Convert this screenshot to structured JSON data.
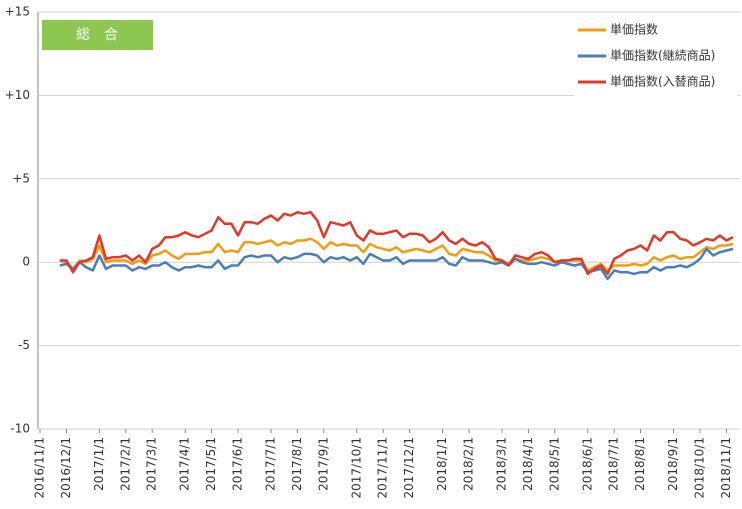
{
  "chart_data": {
    "type": "line",
    "annotation": "総　合",
    "categories": [
      "2016/11/1",
      null,
      null,
      null,
      "2016/12/1",
      null,
      null,
      null,
      null,
      "2017/1/1",
      null,
      null,
      null,
      "2017/2/1",
      null,
      null,
      null,
      "2017/3/1",
      null,
      null,
      null,
      null,
      "2017/4/1",
      null,
      null,
      null,
      "2017/5/1",
      null,
      null,
      null,
      "2017/6/1",
      null,
      null,
      null,
      null,
      "2017/7/1",
      null,
      null,
      null,
      "2017/8/1",
      null,
      null,
      null,
      "2017/9/1",
      null,
      null,
      null,
      null,
      "2017/10/1",
      null,
      null,
      null,
      "2017/11/1",
      null,
      null,
      null,
      "2017/12/1",
      null,
      null,
      null,
      null,
      "2018/1/1",
      null,
      null,
      null,
      "2018/2/1",
      null,
      null,
      null,
      null,
      "2018/3/1",
      null,
      null,
      null,
      "2018/4/1",
      null,
      null,
      null,
      "2018/5/1",
      null,
      null,
      null,
      null,
      "2018/6/1",
      null,
      null,
      null,
      "2018/7/1",
      null,
      null,
      null,
      "2018/8/1",
      null,
      null,
      null,
      null,
      "2018/9/1",
      null,
      null,
      null,
      "2018/10/1",
      null,
      null,
      null,
      "2018/11/1",
      null
    ],
    "series": [
      {
        "name": "単価指数",
        "color": "#f39c12",
        "values": [
          null,
          null,
          null,
          0.1,
          0.0,
          -0.4,
          0.1,
          0.0,
          0.2,
          1.0,
          0.0,
          0.1,
          0.1,
          0.1,
          -0.1,
          0.1,
          -0.1,
          0.4,
          0.5,
          0.7,
          0.4,
          0.2,
          0.5,
          0.5,
          0.5,
          0.6,
          0.6,
          1.1,
          0.6,
          0.7,
          0.6,
          1.2,
          1.2,
          1.1,
          1.2,
          1.3,
          1.0,
          1.2,
          1.1,
          1.3,
          1.3,
          1.4,
          1.2,
          0.8,
          1.2,
          1.0,
          1.1,
          1.0,
          1.0,
          0.6,
          1.1,
          0.9,
          0.8,
          0.7,
          0.9,
          0.6,
          0.7,
          0.8,
          0.7,
          0.6,
          0.8,
          1.0,
          0.5,
          0.4,
          0.8,
          0.7,
          0.6,
          0.6,
          0.4,
          0.1,
          0.1,
          -0.1,
          0.2,
          0.1,
          0.1,
          0.2,
          0.3,
          0.2,
          0.0,
          0.1,
          0.1,
          0.1,
          0.1,
          -0.5,
          -0.3,
          -0.1,
          -0.5,
          -0.2,
          -0.2,
          -0.2,
          -0.1,
          -0.2,
          -0.1,
          0.3,
          0.1,
          0.3,
          0.4,
          0.2,
          0.3,
          0.3,
          0.6,
          0.9,
          0.8,
          1.0,
          1.0,
          1.1
        ]
      },
      {
        "name": "単価指数(継続商品)",
        "color": "#4a7ebb",
        "values": [
          null,
          null,
          null,
          -0.2,
          -0.1,
          -0.4,
          0.0,
          -0.3,
          -0.5,
          0.4,
          -0.4,
          -0.2,
          -0.2,
          -0.2,
          -0.5,
          -0.3,
          -0.4,
          -0.2,
          -0.2,
          0.0,
          -0.3,
          -0.5,
          -0.3,
          -0.3,
          -0.2,
          -0.3,
          -0.3,
          0.1,
          -0.4,
          -0.2,
          -0.2,
          0.3,
          0.4,
          0.3,
          0.4,
          0.4,
          0.0,
          0.3,
          0.2,
          0.3,
          0.5,
          0.5,
          0.4,
          0.0,
          0.3,
          0.2,
          0.3,
          0.1,
          0.3,
          -0.1,
          0.5,
          0.3,
          0.1,
          0.1,
          0.3,
          -0.1,
          0.1,
          0.1,
          0.1,
          0.1,
          0.1,
          0.3,
          -0.1,
          -0.2,
          0.3,
          0.1,
          0.1,
          0.1,
          0.0,
          -0.1,
          0.0,
          -0.2,
          0.2,
          0.0,
          -0.1,
          -0.1,
          0.0,
          -0.1,
          -0.2,
          0.0,
          -0.1,
          -0.2,
          -0.1,
          -0.6,
          -0.5,
          -0.4,
          -1.0,
          -0.5,
          -0.6,
          -0.6,
          -0.7,
          -0.6,
          -0.6,
          -0.3,
          -0.5,
          -0.3,
          -0.3,
          -0.2,
          -0.3,
          -0.1,
          0.2,
          0.8,
          0.4,
          0.6,
          0.7,
          0.8
        ]
      },
      {
        "name": "単価指数(入替商品)",
        "color": "#e0392b",
        "values": [
          null,
          null,
          null,
          0.1,
          0.1,
          -0.6,
          0.0,
          0.1,
          0.3,
          1.6,
          0.2,
          0.3,
          0.3,
          0.4,
          0.1,
          0.4,
          0.0,
          0.8,
          1.0,
          1.5,
          1.5,
          1.6,
          1.8,
          1.6,
          1.5,
          1.7,
          1.9,
          2.7,
          2.3,
          2.3,
          1.6,
          2.4,
          2.4,
          2.3,
          2.6,
          2.8,
          2.5,
          2.9,
          2.8,
          3.0,
          2.9,
          3.0,
          2.5,
          1.5,
          2.4,
          2.3,
          2.2,
          2.4,
          1.6,
          1.3,
          1.9,
          1.7,
          1.7,
          1.8,
          1.9,
          1.5,
          1.7,
          1.7,
          1.6,
          1.2,
          1.4,
          1.8,
          1.3,
          1.1,
          1.4,
          1.1,
          1.0,
          1.2,
          0.9,
          0.2,
          0.1,
          -0.2,
          0.4,
          0.3,
          0.2,
          0.5,
          0.6,
          0.4,
          0.0,
          0.1,
          0.1,
          0.2,
          0.2,
          -0.7,
          -0.4,
          -0.2,
          -0.7,
          0.2,
          0.4,
          0.7,
          0.8,
          1.0,
          0.7,
          1.6,
          1.3,
          1.8,
          1.8,
          1.4,
          1.3,
          1.0,
          1.2,
          1.4,
          1.3,
          1.6,
          1.3,
          1.5
        ]
      }
    ],
    "ylim": [
      -10,
      15
    ],
    "yticks": [
      {
        "value": 15,
        "label": "+15"
      },
      {
        "value": 10,
        "label": "+10"
      },
      {
        "value": 5,
        "label": "+5"
      },
      0,
      -5,
      -10
    ],
    "grid": true,
    "legend": "top-right"
  }
}
